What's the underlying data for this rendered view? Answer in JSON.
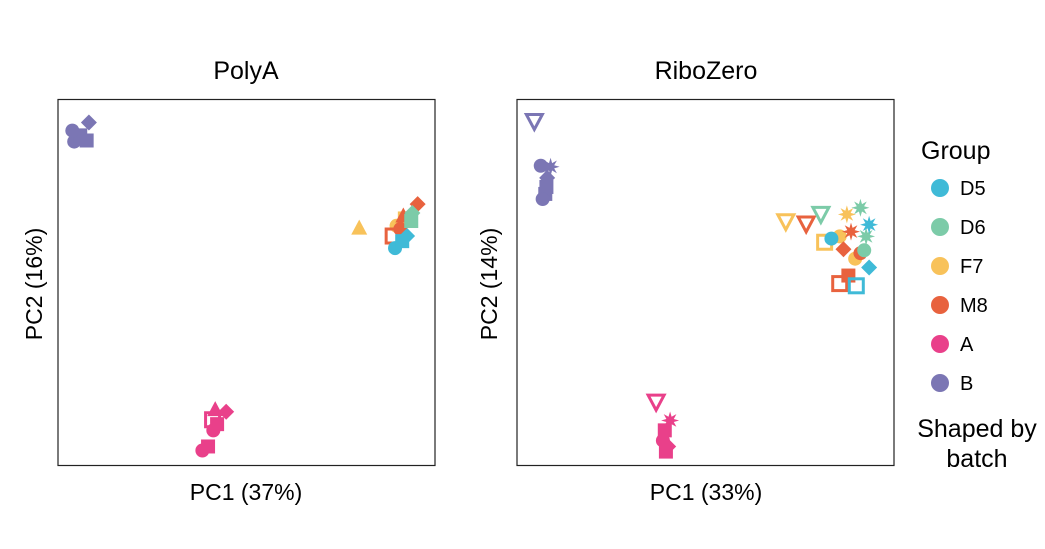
{
  "legend": {
    "title": "Group",
    "entries": [
      {
        "label": "D5",
        "color": "#3FBAD7"
      },
      {
        "label": "D6",
        "color": "#7CCBA8"
      },
      {
        "label": "F7",
        "color": "#F8C25A"
      },
      {
        "label": "M8",
        "color": "#E8623E"
      },
      {
        "label": "A",
        "color": "#E9408A"
      },
      {
        "label": "B",
        "color": "#7B76B4"
      }
    ],
    "note_line1": "Shaped by",
    "note_line2": "batch"
  },
  "chart_data": [
    {
      "type": "scatter",
      "title": "PolyA",
      "xlabel": "PC1 (37%)",
      "ylabel": "PC2 (16%)",
      "xlim": [
        0,
        100
      ],
      "ylim": [
        0,
        100
      ],
      "ticks_shown": false,
      "grid": false,
      "points": [
        {
          "group": "B",
          "shape": "circle",
          "x": 4.3,
          "y": 88.5
        },
        {
          "group": "B",
          "shape": "square",
          "x": 5.9,
          "y": 90.2
        },
        {
          "group": "B",
          "shape": "diamond",
          "x": 8.2,
          "y": 93.7
        },
        {
          "group": "B",
          "shape": "triangle",
          "x": 6.8,
          "y": 89.6
        },
        {
          "group": "B",
          "shape": "circle",
          "x": 3.8,
          "y": 91.5
        },
        {
          "group": "B",
          "shape": "square",
          "x": 7.6,
          "y": 88.8
        },
        {
          "group": "F7",
          "shape": "triangle",
          "x": 79.9,
          "y": 65.0
        },
        {
          "group": "F7",
          "shape": "circle",
          "x": 89.8,
          "y": 65.5
        },
        {
          "group": "F7",
          "shape": "square",
          "x": 92.0,
          "y": 67.5
        },
        {
          "group": "M8",
          "shape": "square_open",
          "x": 88.9,
          "y": 62.7
        },
        {
          "group": "M8",
          "shape": "circle",
          "x": 90.8,
          "y": 64.6
        },
        {
          "group": "M8",
          "shape": "diamond",
          "x": 95.4,
          "y": 71.4
        },
        {
          "group": "M8",
          "shape": "triangle",
          "x": 91.6,
          "y": 68.3
        },
        {
          "group": "D6",
          "shape": "square",
          "x": 93.7,
          "y": 66.8
        },
        {
          "group": "D6",
          "shape": "diamond",
          "x": 94.0,
          "y": 69.0
        },
        {
          "group": "D5",
          "shape": "circle",
          "x": 89.4,
          "y": 59.4
        },
        {
          "group": "D5",
          "shape": "square",
          "x": 91.3,
          "y": 61.3
        },
        {
          "group": "D5",
          "shape": "diamond",
          "x": 92.6,
          "y": 62.7
        },
        {
          "group": "A",
          "shape": "circle",
          "x": 38.3,
          "y": 4.1
        },
        {
          "group": "A",
          "shape": "square",
          "x": 39.8,
          "y": 5.2
        },
        {
          "group": "A",
          "shape": "square_open",
          "x": 41.0,
          "y": 12.5
        },
        {
          "group": "A",
          "shape": "triangle",
          "x": 41.7,
          "y": 15.4
        },
        {
          "group": "A",
          "shape": "diamond",
          "x": 44.6,
          "y": 14.7
        },
        {
          "group": "A",
          "shape": "circle",
          "x": 41.2,
          "y": 9.6
        },
        {
          "group": "A",
          "shape": "square",
          "x": 42.2,
          "y": 11.3
        }
      ]
    },
    {
      "type": "scatter",
      "title": "RiboZero",
      "xlabel": "PC1 (33%)",
      "ylabel": "PC2 (14%)",
      "xlim": [
        0,
        100
      ],
      "ylim": [
        0,
        100
      ],
      "ticks_shown": false,
      "grid": false,
      "points": [
        {
          "group": "B",
          "shape": "triangle_down_open",
          "x": 4.6,
          "y": 94.0
        },
        {
          "group": "B",
          "shape": "circle",
          "x": 6.3,
          "y": 81.9
        },
        {
          "group": "B",
          "shape": "star",
          "x": 8.9,
          "y": 81.6
        },
        {
          "group": "B",
          "shape": "square",
          "x": 7.8,
          "y": 76.1
        },
        {
          "group": "B",
          "shape": "square",
          "x": 7.5,
          "y": 74.2
        },
        {
          "group": "B",
          "shape": "diamond",
          "x": 8.0,
          "y": 78.6
        },
        {
          "group": "B",
          "shape": "circle",
          "x": 6.8,
          "y": 72.8
        },
        {
          "group": "F7",
          "shape": "triangle_down_open",
          "x": 71.3,
          "y": 66.6
        },
        {
          "group": "F7",
          "shape": "circle",
          "x": 85.6,
          "y": 62.6
        },
        {
          "group": "F7",
          "shape": "star",
          "x": 87.5,
          "y": 68.6
        },
        {
          "group": "F7",
          "shape": "square_open",
          "x": 81.6,
          "y": 61.0
        },
        {
          "group": "F7",
          "shape": "circle",
          "x": 89.7,
          "y": 56.5
        },
        {
          "group": "M8",
          "shape": "triangle_down_open",
          "x": 76.7,
          "y": 66.0
        },
        {
          "group": "M8",
          "shape": "square_open",
          "x": 85.6,
          "y": 49.7
        },
        {
          "group": "M8",
          "shape": "square",
          "x": 87.9,
          "y": 51.9
        },
        {
          "group": "M8",
          "shape": "diamond",
          "x": 86.6,
          "y": 59.1
        },
        {
          "group": "M8",
          "shape": "circle",
          "x": 91.1,
          "y": 58.0
        },
        {
          "group": "M8",
          "shape": "star",
          "x": 88.6,
          "y": 63.9
        },
        {
          "group": "D6",
          "shape": "triangle_down_open",
          "x": 80.6,
          "y": 68.6
        },
        {
          "group": "D6",
          "shape": "star",
          "x": 91.1,
          "y": 70.4
        },
        {
          "group": "D6",
          "shape": "star",
          "x": 92.6,
          "y": 62.6
        },
        {
          "group": "D6",
          "shape": "circle",
          "x": 92.1,
          "y": 58.8
        },
        {
          "group": "D5",
          "shape": "square_open",
          "x": 90.0,
          "y": 49.1
        },
        {
          "group": "D5",
          "shape": "diamond",
          "x": 93.4,
          "y": 54.1
        },
        {
          "group": "D5",
          "shape": "circle",
          "x": 83.4,
          "y": 62.0
        },
        {
          "group": "D5",
          "shape": "star",
          "x": 93.4,
          "y": 65.8
        },
        {
          "group": "A",
          "shape": "triangle_down_open",
          "x": 36.9,
          "y": 17.3
        },
        {
          "group": "A",
          "shape": "star",
          "x": 40.6,
          "y": 12.3
        },
        {
          "group": "A",
          "shape": "square",
          "x": 39.2,
          "y": 9.6
        },
        {
          "group": "A",
          "shape": "circle",
          "x": 38.7,
          "y": 6.8
        },
        {
          "group": "A",
          "shape": "square",
          "x": 39.5,
          "y": 3.8
        },
        {
          "group": "A",
          "shape": "diamond",
          "x": 40.1,
          "y": 5.2
        }
      ]
    }
  ]
}
